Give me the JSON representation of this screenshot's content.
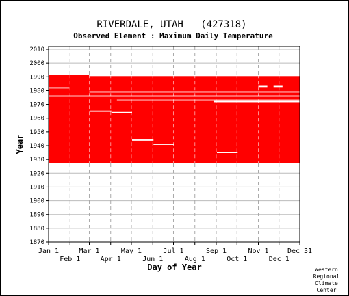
{
  "chart_data": {
    "type": "heatmap",
    "title": "RIVERDALE, UTAH   (427318)",
    "subtitle": "Observed Element : Maximum Daily Temperature",
    "xlabel": "Day of Year",
    "ylabel": "Year",
    "x_ticks_top": [
      "Jan 1",
      "Mar 1",
      "May 1",
      "Jul 1",
      "Sep 1",
      "Nov 1",
      "Dec 31"
    ],
    "x_ticks_bottom": [
      "Feb 1",
      "Apr 1",
      "Jun 1",
      "Aug 1",
      "Oct 1",
      "Dec 1"
    ],
    "x_tick_days_top": [
      1,
      60,
      121,
      182,
      244,
      305,
      365
    ],
    "x_tick_days_bottom": [
      32,
      91,
      152,
      213,
      274,
      335
    ],
    "y_ticks": [
      1870,
      1880,
      1890,
      1900,
      1910,
      1920,
      1930,
      1940,
      1950,
      1960,
      1970,
      1980,
      1990,
      2000,
      2010
    ],
    "xlim": [
      1,
      365
    ],
    "ylim": [
      1870,
      2012
    ],
    "grid": true,
    "data_color": "#ff0000",
    "records": [
      {
        "start_day": 1,
        "end_day": 60,
        "first_year": 1927.5,
        "last_year": 1991.5
      },
      {
        "start_day": 60,
        "end_day": 365,
        "first_year": 1927.5,
        "last_year": 1990.5
      }
    ],
    "missing_segments": [
      {
        "start_day": 1,
        "end_day": 31,
        "year": 1982
      },
      {
        "start_day": 61,
        "end_day": 92,
        "year": 1965
      },
      {
        "start_day": 92,
        "end_day": 122,
        "year": 1964
      },
      {
        "start_day": 122,
        "end_day": 153,
        "year": 1944
      },
      {
        "start_day": 153,
        "end_day": 183,
        "year": 1941
      },
      {
        "start_day": 245,
        "end_day": 275,
        "year": 1935
      },
      {
        "start_day": 305,
        "end_day": 318,
        "year": 1983
      },
      {
        "start_day": 327,
        "end_day": 340,
        "year": 1983
      },
      {
        "start_day": 1,
        "end_day": 365,
        "year": 1976
      },
      {
        "start_day": 100,
        "end_day": 365,
        "year": 1973
      },
      {
        "start_day": 240,
        "end_day": 365,
        "year": 1972
      },
      {
        "start_day": 60,
        "end_day": 365,
        "year": 1979
      }
    ],
    "footer": [
      "Western",
      "Regional",
      "Climate",
      "Center"
    ]
  }
}
